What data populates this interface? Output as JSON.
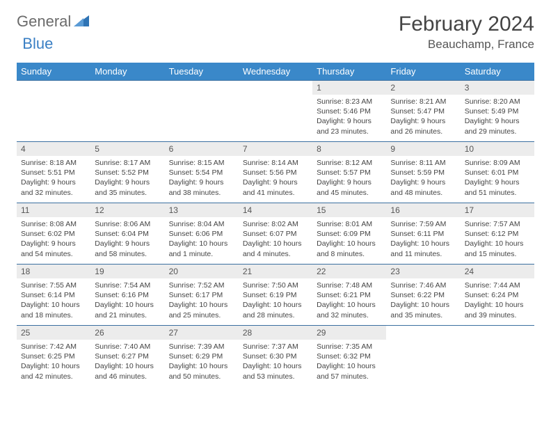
{
  "logo": {
    "text1": "General",
    "text2": "Blue"
  },
  "title": "February 2024",
  "location": "Beauchamp, France",
  "colors": {
    "header_bg": "#3a88c9",
    "header_text": "#ffffff",
    "row_border": "#3a6fa0",
    "daynum_bg": "#ececec",
    "logo_gray": "#6b6b6b",
    "logo_blue": "#3a7fc4"
  },
  "weekdays": [
    "Sunday",
    "Monday",
    "Tuesday",
    "Wednesday",
    "Thursday",
    "Friday",
    "Saturday"
  ],
  "weeks": [
    [
      null,
      null,
      null,
      null,
      {
        "n": "1",
        "sr": "8:23 AM",
        "ss": "5:46 PM",
        "dl": "9 hours and 23 minutes."
      },
      {
        "n": "2",
        "sr": "8:21 AM",
        "ss": "5:47 PM",
        "dl": "9 hours and 26 minutes."
      },
      {
        "n": "3",
        "sr": "8:20 AM",
        "ss": "5:49 PM",
        "dl": "9 hours and 29 minutes."
      }
    ],
    [
      {
        "n": "4",
        "sr": "8:18 AM",
        "ss": "5:51 PM",
        "dl": "9 hours and 32 minutes."
      },
      {
        "n": "5",
        "sr": "8:17 AM",
        "ss": "5:52 PM",
        "dl": "9 hours and 35 minutes."
      },
      {
        "n": "6",
        "sr": "8:15 AM",
        "ss": "5:54 PM",
        "dl": "9 hours and 38 minutes."
      },
      {
        "n": "7",
        "sr": "8:14 AM",
        "ss": "5:56 PM",
        "dl": "9 hours and 41 minutes."
      },
      {
        "n": "8",
        "sr": "8:12 AM",
        "ss": "5:57 PM",
        "dl": "9 hours and 45 minutes."
      },
      {
        "n": "9",
        "sr": "8:11 AM",
        "ss": "5:59 PM",
        "dl": "9 hours and 48 minutes."
      },
      {
        "n": "10",
        "sr": "8:09 AM",
        "ss": "6:01 PM",
        "dl": "9 hours and 51 minutes."
      }
    ],
    [
      {
        "n": "11",
        "sr": "8:08 AM",
        "ss": "6:02 PM",
        "dl": "9 hours and 54 minutes."
      },
      {
        "n": "12",
        "sr": "8:06 AM",
        "ss": "6:04 PM",
        "dl": "9 hours and 58 minutes."
      },
      {
        "n": "13",
        "sr": "8:04 AM",
        "ss": "6:06 PM",
        "dl": "10 hours and 1 minute."
      },
      {
        "n": "14",
        "sr": "8:02 AM",
        "ss": "6:07 PM",
        "dl": "10 hours and 4 minutes."
      },
      {
        "n": "15",
        "sr": "8:01 AM",
        "ss": "6:09 PM",
        "dl": "10 hours and 8 minutes."
      },
      {
        "n": "16",
        "sr": "7:59 AM",
        "ss": "6:11 PM",
        "dl": "10 hours and 11 minutes."
      },
      {
        "n": "17",
        "sr": "7:57 AM",
        "ss": "6:12 PM",
        "dl": "10 hours and 15 minutes."
      }
    ],
    [
      {
        "n": "18",
        "sr": "7:55 AM",
        "ss": "6:14 PM",
        "dl": "10 hours and 18 minutes."
      },
      {
        "n": "19",
        "sr": "7:54 AM",
        "ss": "6:16 PM",
        "dl": "10 hours and 21 minutes."
      },
      {
        "n": "20",
        "sr": "7:52 AM",
        "ss": "6:17 PM",
        "dl": "10 hours and 25 minutes."
      },
      {
        "n": "21",
        "sr": "7:50 AM",
        "ss": "6:19 PM",
        "dl": "10 hours and 28 minutes."
      },
      {
        "n": "22",
        "sr": "7:48 AM",
        "ss": "6:21 PM",
        "dl": "10 hours and 32 minutes."
      },
      {
        "n": "23",
        "sr": "7:46 AM",
        "ss": "6:22 PM",
        "dl": "10 hours and 35 minutes."
      },
      {
        "n": "24",
        "sr": "7:44 AM",
        "ss": "6:24 PM",
        "dl": "10 hours and 39 minutes."
      }
    ],
    [
      {
        "n": "25",
        "sr": "7:42 AM",
        "ss": "6:25 PM",
        "dl": "10 hours and 42 minutes."
      },
      {
        "n": "26",
        "sr": "7:40 AM",
        "ss": "6:27 PM",
        "dl": "10 hours and 46 minutes."
      },
      {
        "n": "27",
        "sr": "7:39 AM",
        "ss": "6:29 PM",
        "dl": "10 hours and 50 minutes."
      },
      {
        "n": "28",
        "sr": "7:37 AM",
        "ss": "6:30 PM",
        "dl": "10 hours and 53 minutes."
      },
      {
        "n": "29",
        "sr": "7:35 AM",
        "ss": "6:32 PM",
        "dl": "10 hours and 57 minutes."
      },
      null,
      null
    ]
  ],
  "labels": {
    "sunrise": "Sunrise:",
    "sunset": "Sunset:",
    "daylight": "Daylight:"
  }
}
